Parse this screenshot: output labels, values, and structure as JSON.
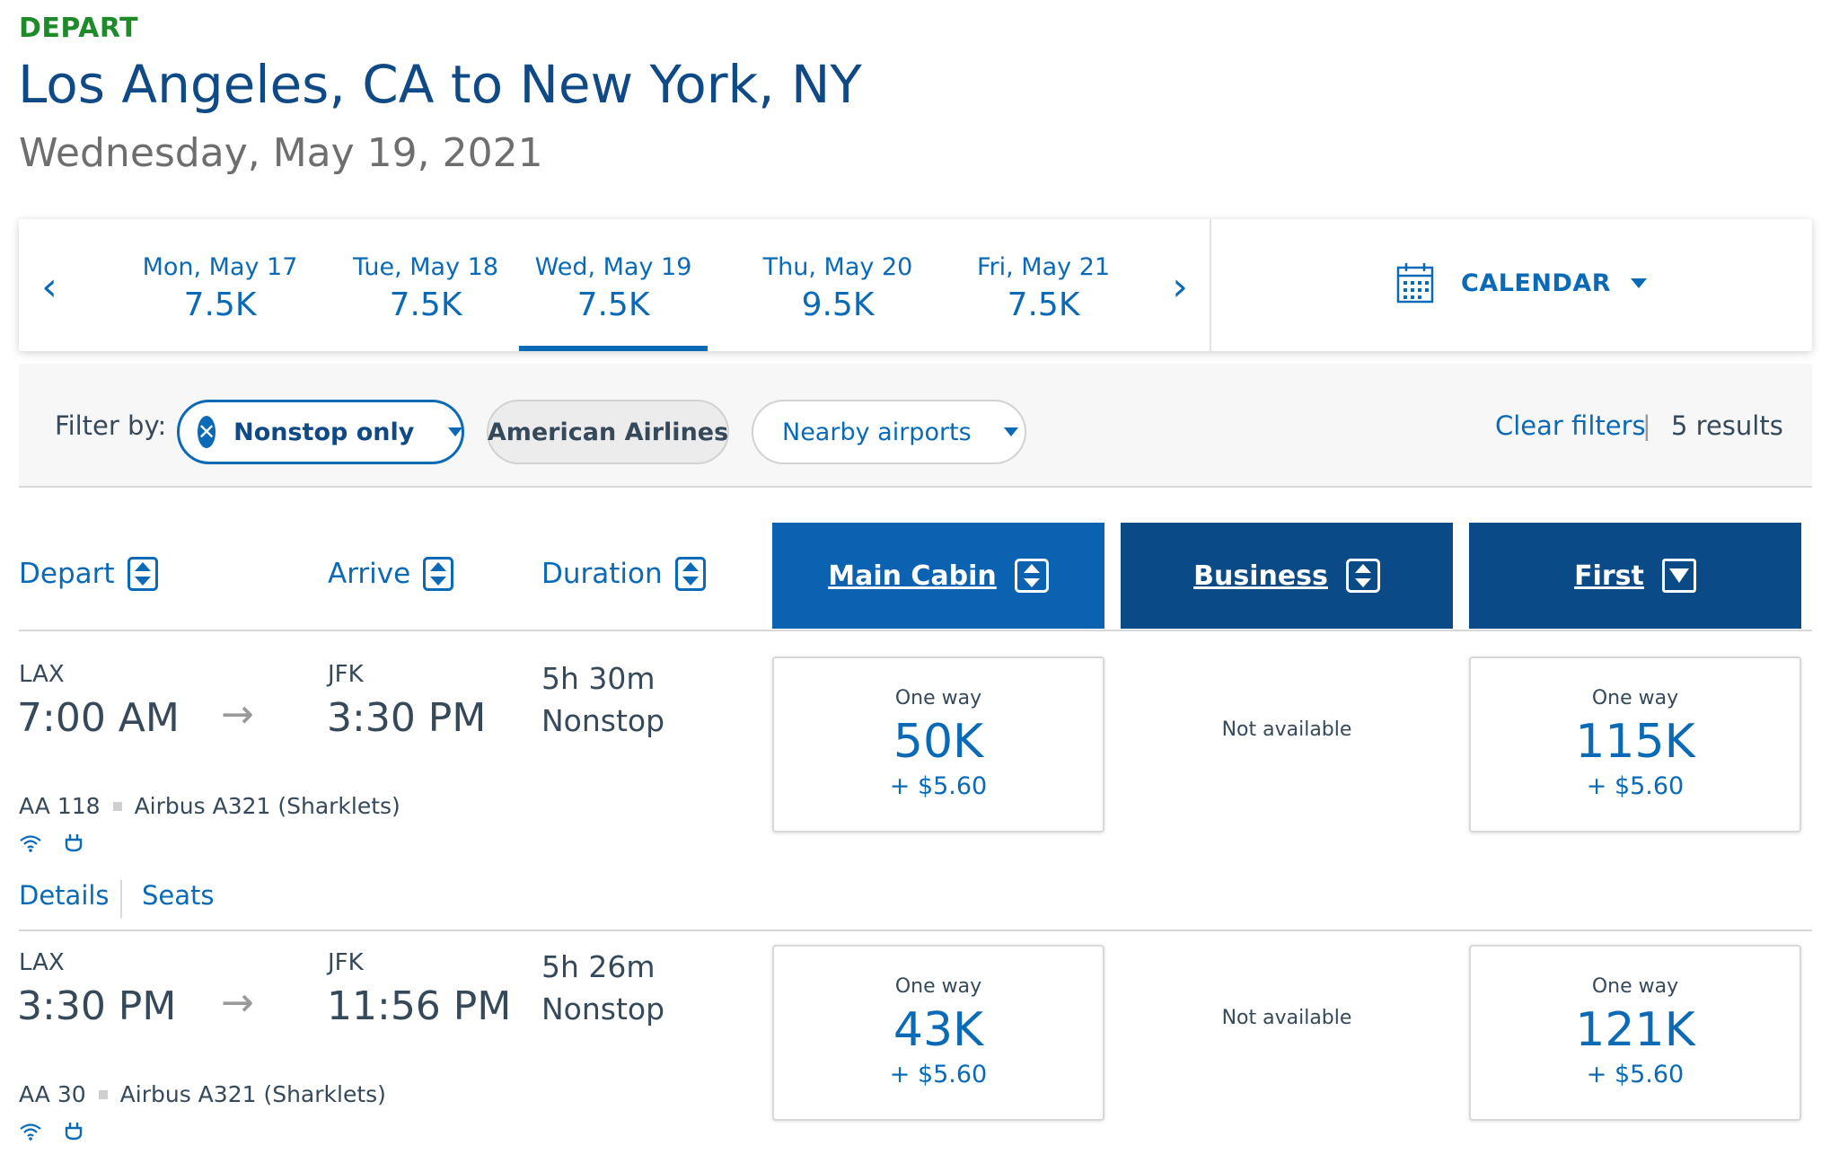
{
  "header": {
    "section_label": "DEPART",
    "route_title": "Los Angeles, CA to New York, NY",
    "date": "Wednesday, May 19, 2021"
  },
  "date_strip": {
    "prev_icon": "chevron-left-icon",
    "next_icon": "chevron-right-icon",
    "dates": [
      {
        "label": "Mon, May 17",
        "price": "7.5K",
        "active": false
      },
      {
        "label": "Tue, May 18",
        "price": "7.5K",
        "active": false
      },
      {
        "label": "Wed, May 19",
        "price": "7.5K",
        "active": true
      },
      {
        "label": "Thu, May 20",
        "price": "9.5K",
        "active": false
      },
      {
        "label": "Fri, May 21",
        "price": "7.5K",
        "active": false
      }
    ],
    "calendar_label": "CALENDAR"
  },
  "filters": {
    "label": "Filter by:",
    "nonstop": "Nonstop only",
    "airline": "American Airlines",
    "nearby": "Nearby airports",
    "clear": "Clear filters",
    "separator": "|",
    "results": "5 results"
  },
  "sort": {
    "depart": "Depart",
    "arrive": "Arrive",
    "duration": "Duration"
  },
  "cabins": {
    "main": "Main Cabin",
    "business": "Business",
    "first": "First"
  },
  "flights": [
    {
      "origin": "LAX",
      "depart_time": "7:00 AM",
      "destination": "JFK",
      "arrive_time": "3:30 PM",
      "duration": "5h 30m",
      "stops": "Nonstop",
      "flight_no": "AA 118",
      "aircraft": "Airbus A321 (Sharklets)",
      "main": {
        "label": "One way",
        "miles": "50K",
        "tax": "+ $5.60"
      },
      "business": "Not available",
      "first": {
        "label": "One way",
        "miles": "115K",
        "tax": "+ $5.60"
      },
      "details_link": "Details",
      "seats_link": "Seats"
    },
    {
      "origin": "LAX",
      "depart_time": "3:30 PM",
      "destination": "JFK",
      "arrive_time": "11:56 PM",
      "duration": "5h 26m",
      "stops": "Nonstop",
      "flight_no": "AA 30",
      "aircraft": "Airbus A321 (Sharklets)",
      "main": {
        "label": "One way",
        "miles": "43K",
        "tax": "+ $5.60"
      },
      "business": "Not available",
      "first": {
        "label": "One way",
        "miles": "121K",
        "tax": "+ $5.60"
      }
    }
  ],
  "colors": {
    "brand_blue": "#0b6ab6",
    "navy": "#0a4a86",
    "depart_green": "#1f8a2a"
  }
}
